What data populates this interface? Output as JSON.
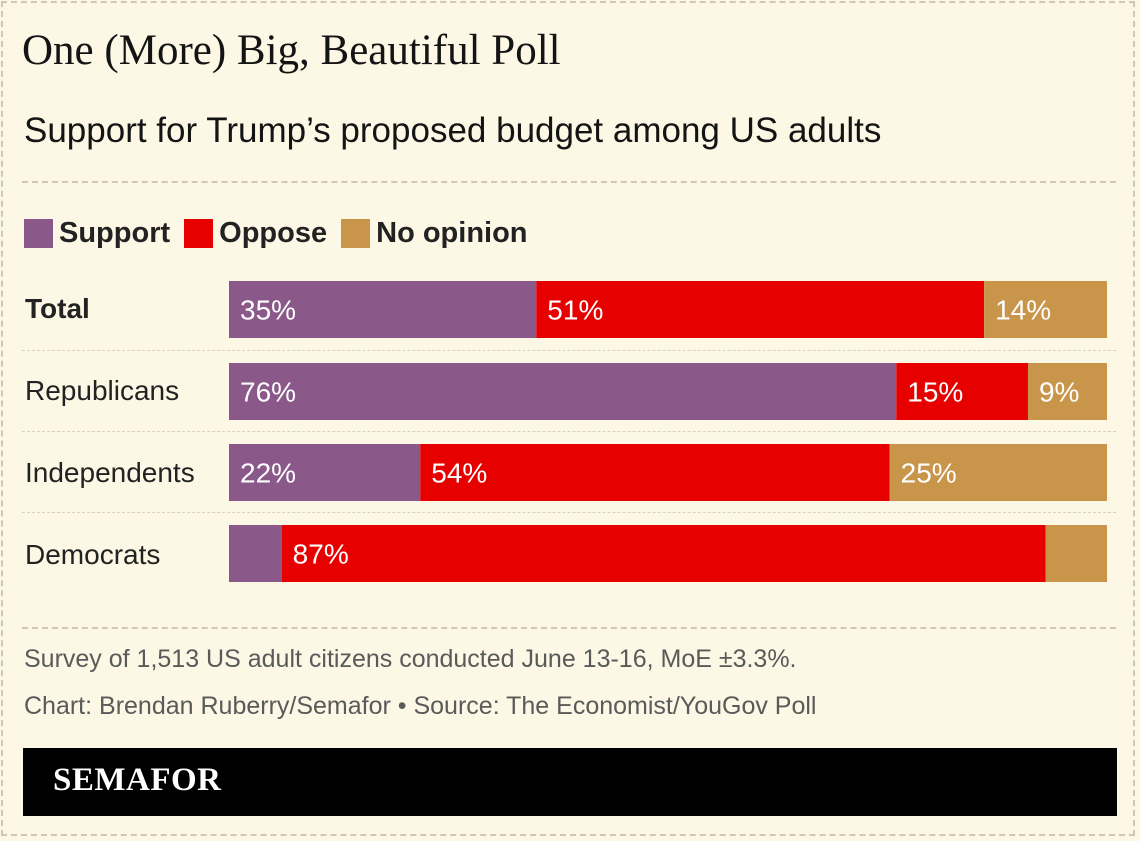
{
  "title": "One (More) Big, Beautiful Poll",
  "subtitle": "Support for Trump’s proposed budget among US adults",
  "colors": {
    "support": "#8a5889",
    "oppose": "#e60000",
    "no_opinion": "#c8954a",
    "background": "#fcf8e5"
  },
  "chart_data": {
    "type": "bar",
    "orientation": "horizontal-stacked-100",
    "categories": [
      "Total",
      "Republicans",
      "Independents",
      "Democrats"
    ],
    "series": [
      {
        "name": "Support",
        "values": [
          35,
          76,
          22,
          6
        ],
        "labels": [
          "35%",
          "76%",
          "22%",
          ""
        ]
      },
      {
        "name": "Oppose",
        "values": [
          51,
          15,
          54,
          87
        ],
        "labels": [
          "51%",
          "15%",
          "54%",
          "87%"
        ]
      },
      {
        "name": "No opinion",
        "values": [
          14,
          9,
          25,
          7
        ],
        "labels": [
          "14%",
          "9%",
          "25%",
          ""
        ]
      }
    ],
    "legend": [
      "Support",
      "Oppose",
      "No opinion"
    ],
    "legend_position": "top-left"
  },
  "note": "Survey of 1,513 US adult citizens conducted June 13-16, MoE ±3.3%.",
  "credit": "Chart: Brendan Ruberry/Semafor • Source: The Economist/YouGov Poll",
  "brand": "SEMAFOR"
}
